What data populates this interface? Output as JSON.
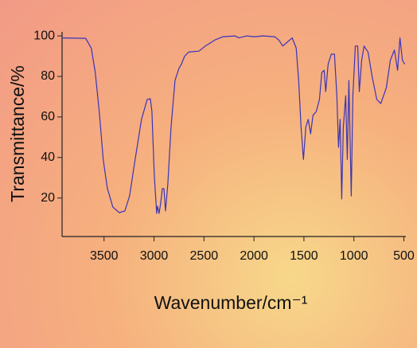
{
  "chart_data": {
    "type": "line",
    "x_label": "Wavenumber/cm⁻¹",
    "y_label": "Transmittance/%",
    "xlim": [
      3920,
      480
    ],
    "ylim": [
      1,
      102
    ],
    "xticks": [
      3500,
      3000,
      2500,
      2000,
      1500,
      1000,
      500
    ],
    "yticks": [
      20,
      40,
      60,
      80,
      100
    ],
    "series": [
      {
        "color": "#3a34b8",
        "x": [
          3920,
          3684,
          3628,
          3588,
          3548,
          3508,
          3468,
          3412,
          3348,
          3292,
          3245,
          3189,
          3125,
          3069,
          3037,
          3021,
          2997,
          2973,
          2965,
          2949,
          2933,
          2917,
          2901,
          2885,
          2862,
          2830,
          2790,
          2750,
          2726,
          2694,
          2654,
          2550,
          2486,
          2391,
          2311,
          2191,
          2151,
          2071,
          1992,
          1912,
          1792,
          1752,
          1712,
          1672,
          1617,
          1577,
          1553,
          1529,
          1505,
          1481,
          1457,
          1433,
          1409,
          1377,
          1345,
          1321,
          1298,
          1282,
          1258,
          1226,
          1194,
          1170,
          1154,
          1138,
          1122,
          1106,
          1082,
          1066,
          1050,
          1026,
          1010,
          986,
          962,
          946,
          922,
          898,
          858,
          818,
          771,
          731,
          675,
          635,
          595,
          563,
          539,
          515,
          491
        ],
        "values": [
          99,
          98.8,
          94,
          82,
          62.7,
          39,
          25,
          15.5,
          12.8,
          13.6,
          21,
          39,
          58.8,
          68.6,
          69,
          62.7,
          31,
          12.4,
          16,
          12.4,
          17.5,
          24.6,
          24.6,
          13.6,
          27,
          54.8,
          78,
          84,
          86,
          90,
          92,
          92.5,
          95,
          98,
          99.6,
          100,
          99,
          100,
          99.6,
          100,
          99.6,
          98,
          95,
          96.7,
          99,
          94,
          78,
          55,
          39,
          55,
          58.8,
          51.7,
          60.8,
          62.7,
          68.6,
          82,
          83,
          72.5,
          86,
          91,
          91,
          70.5,
          45,
          58.8,
          19.5,
          54.8,
          70.5,
          39,
          78,
          21,
          70.5,
          95,
          95,
          72.5,
          88,
          95,
          92,
          80,
          68.6,
          66.6,
          74.5,
          88,
          93,
          83,
          99,
          88,
          86
        ]
      }
    ]
  }
}
